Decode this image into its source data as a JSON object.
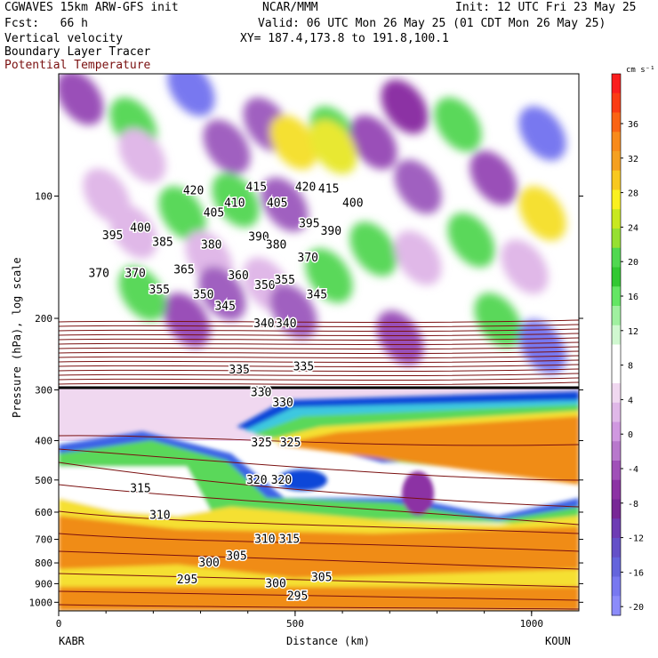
{
  "header": {
    "model": "CGWAVES 15km ARW-GFS init",
    "org": "NCAR/MMM",
    "init": "Init: 12 UTC Fri 23 May 25",
    "fcst": "Fcst:   66 h",
    "valid": "Valid: 06 UTC Mon 26 May 25 (01 CDT Mon 26 May 25)",
    "field1": "Vertical velocity",
    "field2": "Boundary Layer Tracer",
    "field3": "Potential Temperature",
    "xy": "XY= 187.4,173.8 to 191.8,100.1"
  },
  "colors": {
    "theta": "#7a1010",
    "tracer": "#000000"
  },
  "chart_data": {
    "type": "heatmap",
    "title": "Vertical velocity",
    "xlabel": "Distance (km)",
    "ylabel": "Pressure (hPa), log scale",
    "xlim": [
      0,
      1100
    ],
    "x_ticks": [
      0,
      500,
      1000
    ],
    "x_tick_labels": [
      "0",
      "500",
      "1000"
    ],
    "y_scale": "log",
    "y_ticks": [
      100,
      200,
      300,
      400,
      500,
      600,
      700,
      800,
      900,
      1000
    ],
    "y_tick_labels": [
      "100",
      "200",
      "300",
      "400",
      "500",
      "600",
      "700",
      "800",
      "900",
      "1000"
    ],
    "endpoints": {
      "left": "KABR",
      "right": "KOUN"
    },
    "colorbar": {
      "unit": "cm s⁻¹",
      "labels": [
        "36",
        "32",
        "28",
        "24",
        "20",
        "16",
        "12",
        "8",
        "4",
        "0",
        "-4",
        "-8",
        "-12",
        "-16",
        "-20"
      ],
      "colors": [
        "#fa1e1e",
        "#fa3c14",
        "#fa6414",
        "#f88a1a",
        "#f5a020",
        "#f8c820",
        "#faf020",
        "#c8e820",
        "#96e032",
        "#50d850",
        "#32c832",
        "#64e664",
        "#a0f0a0",
        "#d0f8d0",
        "#ffffff",
        "#ffffff",
        "#f0d8f0",
        "#e0b8e8",
        "#d098e0",
        "#b878cc",
        "#a050b8",
        "#8c32a4",
        "#782896",
        "#6e3cb4",
        "#6450c8",
        "#6464dc",
        "#7878f0",
        "#8c8cfa"
      ]
    },
    "theta_labels": [
      {
        "value": "420",
        "x": 285,
        "p": 97
      },
      {
        "value": "415",
        "x": 418,
        "p": 95
      },
      {
        "value": "420",
        "x": 522,
        "p": 95
      },
      {
        "value": "415",
        "x": 571,
        "p": 96
      },
      {
        "value": "405",
        "x": 328,
        "p": 110
      },
      {
        "value": "410",
        "x": 372,
        "p": 104
      },
      {
        "value": "405",
        "x": 462,
        "p": 104
      },
      {
        "value": "400",
        "x": 622,
        "p": 104
      },
      {
        "value": "395",
        "x": 114,
        "p": 125
      },
      {
        "value": "400",
        "x": 173,
        "p": 120
      },
      {
        "value": "395",
        "x": 530,
        "p": 117
      },
      {
        "value": "390",
        "x": 576,
        "p": 122
      },
      {
        "value": "385",
        "x": 220,
        "p": 130
      },
      {
        "value": "380",
        "x": 323,
        "p": 132
      },
      {
        "value": "390",
        "x": 423,
        "p": 126
      },
      {
        "value": "380",
        "x": 460,
        "p": 132
      },
      {
        "value": "370",
        "x": 527,
        "p": 142
      },
      {
        "value": "370",
        "x": 85,
        "p": 155
      },
      {
        "value": "370",
        "x": 162,
        "p": 155
      },
      {
        "value": "365",
        "x": 265,
        "p": 152
      },
      {
        "value": "360",
        "x": 380,
        "p": 157
      },
      {
        "value": "350",
        "x": 436,
        "p": 166
      },
      {
        "value": "355",
        "x": 478,
        "p": 161
      },
      {
        "value": "355",
        "x": 213,
        "p": 170
      },
      {
        "value": "350",
        "x": 306,
        "p": 175
      },
      {
        "value": "345",
        "x": 352,
        "p": 187
      },
      {
        "value": "345",
        "x": 546,
        "p": 175
      },
      {
        "value": "340",
        "x": 434,
        "p": 206
      },
      {
        "value": "340",
        "x": 481,
        "p": 206
      },
      {
        "value": "335",
        "x": 382,
        "p": 268
      },
      {
        "value": "335",
        "x": 518,
        "p": 263
      },
      {
        "value": "330",
        "x": 428,
        "p": 305
      },
      {
        "value": "330",
        "x": 474,
        "p": 323
      },
      {
        "value": "325",
        "x": 429,
        "p": 405
      },
      {
        "value": "325",
        "x": 490,
        "p": 405
      },
      {
        "value": "320",
        "x": 419,
        "p": 500
      },
      {
        "value": "320",
        "x": 471,
        "p": 500
      },
      {
        "value": "315",
        "x": 173,
        "p": 525
      },
      {
        "value": "310",
        "x": 214,
        "p": 610
      },
      {
        "value": "310",
        "x": 436,
        "p": 700
      },
      {
        "value": "315",
        "x": 488,
        "p": 700
      },
      {
        "value": "305",
        "x": 376,
        "p": 770
      },
      {
        "value": "300",
        "x": 318,
        "p": 800
      },
      {
        "value": "305",
        "x": 556,
        "p": 870
      },
      {
        "value": "295",
        "x": 272,
        "p": 880
      },
      {
        "value": "300",
        "x": 459,
        "p": 900
      },
      {
        "value": "295",
        "x": 505,
        "p": 965
      }
    ]
  }
}
